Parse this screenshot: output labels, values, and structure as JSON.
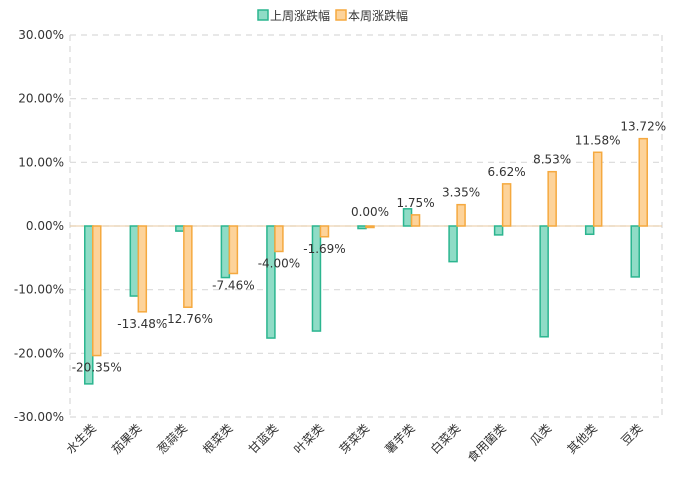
{
  "chart_data": {
    "type": "bar",
    "categories": [
      "水生类",
      "茄果类",
      "葱蒜类",
      "根菜类",
      "甘蓝类",
      "叶菜类",
      "芽菜类",
      "薯芋类",
      "白菜类",
      "食用菌类",
      "瓜类",
      "其他类",
      "豆类"
    ],
    "series": [
      {
        "name": "上周涨跌幅",
        "values": [
          -24.8,
          -11.0,
          -0.8,
          -8.1,
          -17.6,
          -16.5,
          -0.4,
          2.7,
          -5.6,
          -1.4,
          -17.4,
          -1.3,
          -8.0
        ],
        "color": "#8fdcc6",
        "stroke": "#2bb58f"
      },
      {
        "name": "本周涨跌幅",
        "values": [
          -20.35,
          -13.48,
          -12.76,
          -7.46,
          -4.0,
          -1.69,
          0.0,
          1.75,
          3.35,
          6.62,
          8.53,
          11.58,
          13.72
        ],
        "color": "#fdd39a",
        "stroke": "#f5a93f"
      }
    ],
    "data_labels": [
      "-20.35%",
      "-13.48%",
      "-12.76%",
      "-7.46%",
      "-4.00%",
      "-1.69%",
      "0.00%",
      "1.75%",
      "3.35%",
      "6.62%",
      "8.53%",
      "11.58%",
      "13.72%"
    ],
    "y_ticks": [
      "30.00%",
      "20.00%",
      "10.00%",
      "0.00%",
      "-10.00%",
      "-20.00%",
      "-30.00%"
    ],
    "ylim": [
      -30,
      30
    ],
    "grid": true,
    "legend_position": "top-center",
    "title": "",
    "xlabel": "",
    "ylabel": ""
  }
}
